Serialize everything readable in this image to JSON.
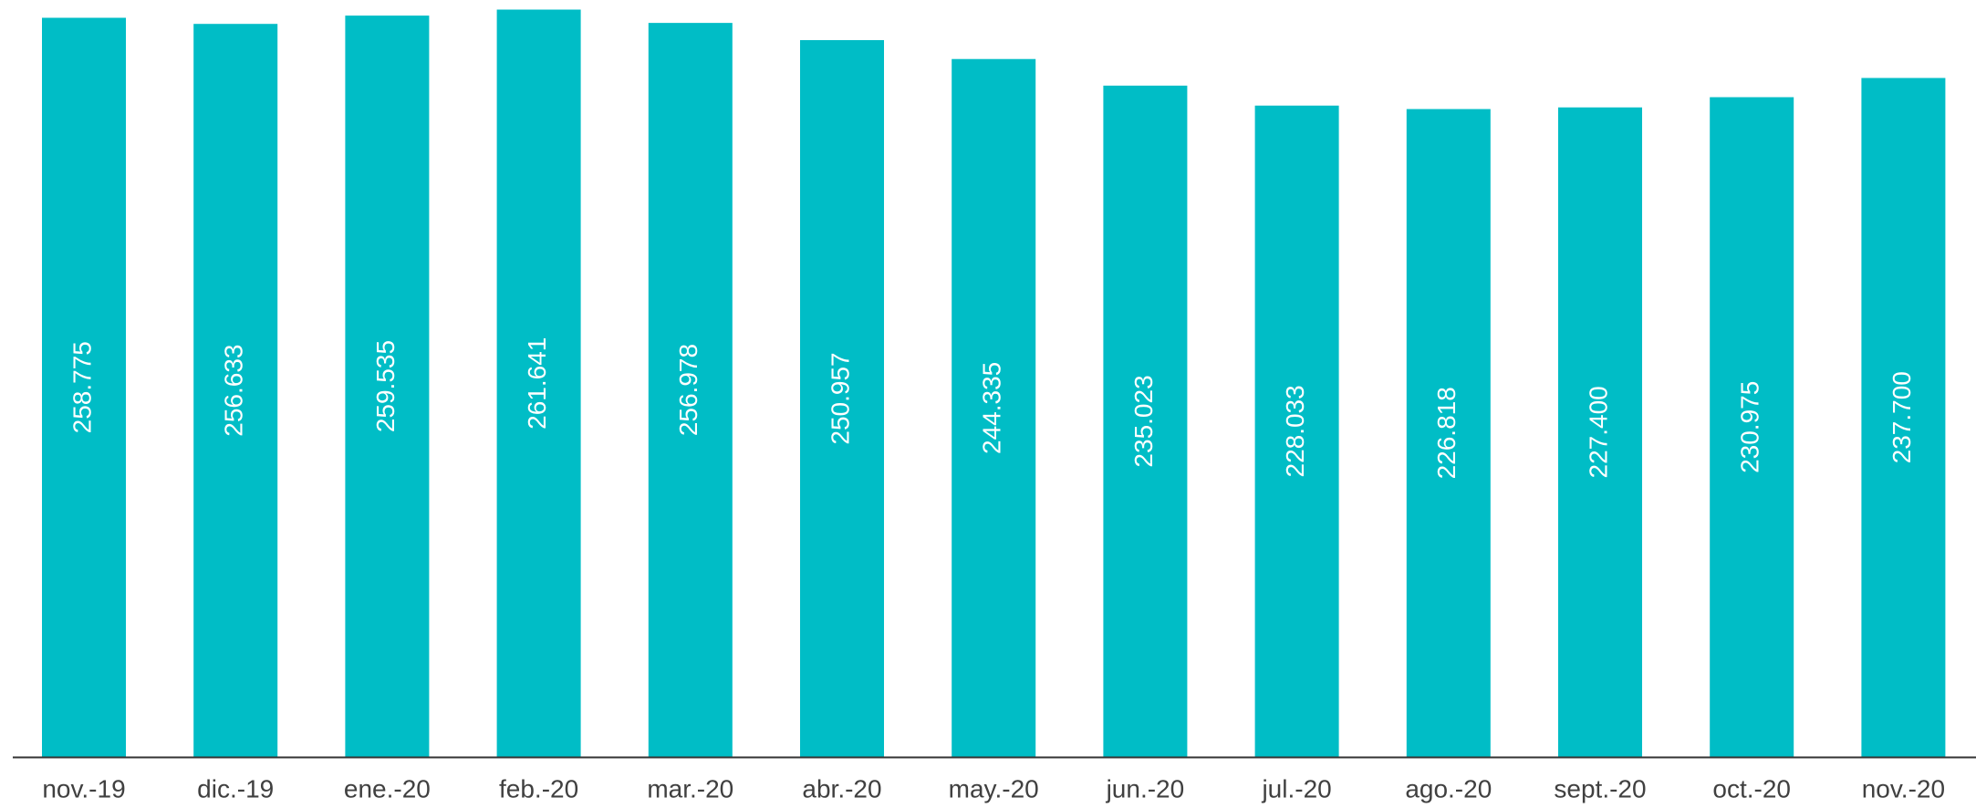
{
  "chart_data": {
    "type": "bar",
    "categories": [
      "nov.-19",
      "dic.-19",
      "ene.-20",
      "feb.-20",
      "mar.-20",
      "abr.-20",
      "may.-20",
      "jun.-20",
      "jul.-20",
      "ago.-20",
      "sept.-20",
      "oct.-20",
      "nov.-20"
    ],
    "values": [
      258775,
      256633,
      259535,
      261641,
      256978,
      250957,
      244335,
      235023,
      228033,
      226818,
      227400,
      230975,
      237700
    ],
    "value_labels": [
      "258.775",
      "256.633",
      "259.535",
      "261.641",
      "256.978",
      "250.957",
      "244.335",
      "235.023",
      "228.033",
      "226.818",
      "227.400",
      "230.975",
      "237.700"
    ],
    "color": "#00bdc6",
    "ylim": [
      0,
      265000
    ]
  }
}
